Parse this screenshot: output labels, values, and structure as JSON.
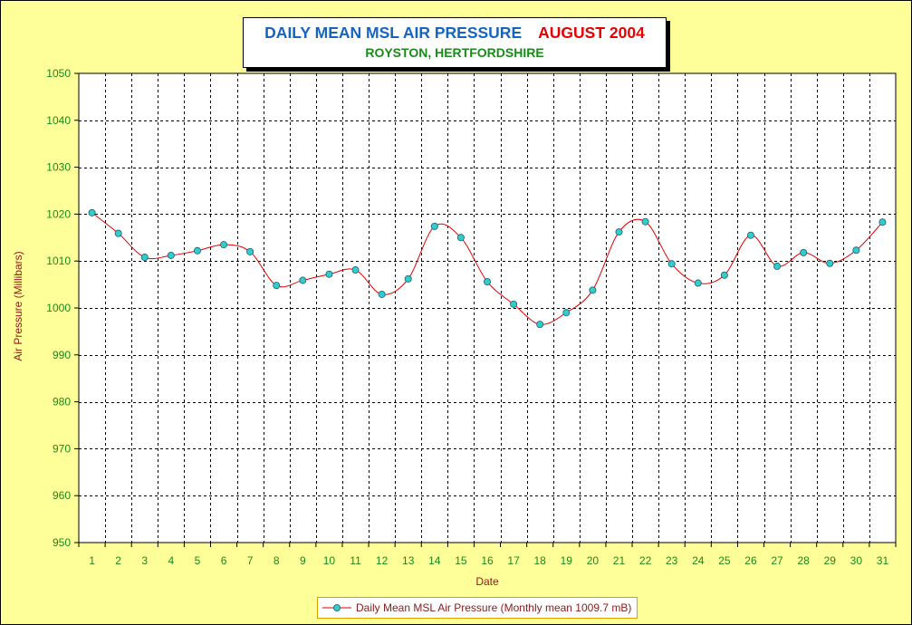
{
  "title": {
    "main": "DAILY MEAN MSL AIR PRESSURE",
    "month": "AUGUST 2004",
    "subtitle": "ROYSTON, HERTFORDSHIRE"
  },
  "colors": {
    "background": "#ffff99",
    "series_line": "#e00000",
    "marker_fill": "#33cccc",
    "title_main": "#1565c0",
    "title_month": "#e60000",
    "subtitle": "#1a8a1a",
    "ticks": "#1a8a1a",
    "axis_titles": "#8b1a1a"
  },
  "legend": {
    "label": "Daily Mean MSL Air Pressure (Monthly mean 1009.7 mB)"
  },
  "chart_data": {
    "type": "line",
    "smoothed": true,
    "markers": "circle",
    "xlabel": "Date",
    "ylabel": "Air Pressure (Millibars)",
    "ylim": [
      950,
      1050
    ],
    "yticks": [
      950,
      960,
      970,
      980,
      990,
      1000,
      1010,
      1020,
      1030,
      1040,
      1050
    ],
    "grid": true,
    "legend_position": "bottom",
    "x": [
      1,
      2,
      3,
      4,
      5,
      6,
      7,
      8,
      9,
      10,
      11,
      12,
      13,
      14,
      15,
      16,
      17,
      18,
      19,
      20,
      21,
      22,
      23,
      24,
      25,
      26,
      27,
      28,
      29,
      30,
      31
    ],
    "series": [
      {
        "name": "Daily Mean MSL Air Pressure (Monthly mean 1009.7 mB)",
        "values": [
          1020.3,
          1015.9,
          1010.8,
          1011.2,
          1012.2,
          1013.5,
          1012.0,
          1004.8,
          1005.9,
          1007.2,
          1008.1,
          1002.9,
          1006.2,
          1017.4,
          1015.0,
          1005.6,
          1000.8,
          996.5,
          999.0,
          1003.8,
          1016.2,
          1018.4,
          1009.4,
          1005.3,
          1007.0,
          1015.5,
          1008.9,
          1011.8,
          1009.5,
          1012.3,
          1018.3
        ]
      }
    ]
  }
}
